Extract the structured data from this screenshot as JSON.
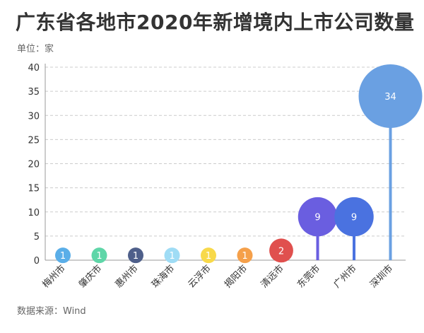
{
  "title": "广东省各地市2020年新增境内上市公司数量",
  "unit_label": "单位：家",
  "source_label": "数据来源：Wind",
  "chart_data": {
    "type": "bubble-lollipop",
    "title": "广东省各地市2020年新增境内上市公司数量",
    "unit": "单位：家",
    "categories": [
      "梅州市",
      "肇庆市",
      "惠州市",
      "珠海市",
      "云浮市",
      "揭阳市",
      "清远市",
      "东莞市",
      "广州市",
      "深圳市"
    ],
    "values": [
      1,
      1,
      1,
      1,
      1,
      1,
      2,
      9,
      9,
      34
    ],
    "colors": [
      "#5aaee8",
      "#5fd6a8",
      "#4e5f8a",
      "#9fdcf5",
      "#f8d94a",
      "#f5a04a",
      "#e0504e",
      "#6a5ee0",
      "#4a72e0",
      "#6aa0e2"
    ],
    "ylim": [
      0,
      40
    ],
    "yticks": [
      0,
      5,
      10,
      15,
      20,
      25,
      30,
      35,
      40
    ],
    "grid": true,
    "source": "数据来源：Wind"
  }
}
